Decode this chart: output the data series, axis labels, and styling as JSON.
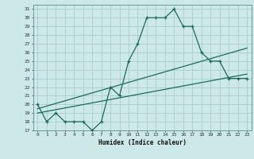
{
  "title": "",
  "xlabel": "Humidex (Indice chaleur)",
  "bg_color": "#cce8e8",
  "grid_color": "#aacccc",
  "line_color": "#1a6b5a",
  "xlim": [
    -0.5,
    23.5
  ],
  "ylim": [
    17,
    31.5
  ],
  "yticks": [
    17,
    18,
    19,
    20,
    21,
    22,
    23,
    24,
    25,
    26,
    27,
    28,
    29,
    30,
    31
  ],
  "xticks": [
    0,
    1,
    2,
    3,
    4,
    5,
    6,
    7,
    8,
    9,
    10,
    11,
    12,
    13,
    14,
    15,
    16,
    17,
    18,
    19,
    20,
    21,
    22,
    23
  ],
  "curve1_x": [
    0,
    1,
    2,
    3,
    4,
    5,
    6,
    7,
    8,
    9,
    10,
    11,
    12,
    13,
    14,
    15,
    16,
    17,
    18,
    19,
    20,
    21,
    22,
    23
  ],
  "curve1_y": [
    20,
    18,
    19,
    18,
    18,
    18,
    17,
    18,
    22,
    21,
    25,
    27,
    30,
    30,
    30,
    31,
    29,
    29,
    26,
    25,
    25,
    23,
    23,
    23
  ],
  "curve2_x": [
    0,
    23
  ],
  "curve2_y": [
    19.5,
    26.5
  ],
  "curve3_x": [
    0,
    23
  ],
  "curve3_y": [
    19.0,
    23.5
  ],
  "marker": "+"
}
